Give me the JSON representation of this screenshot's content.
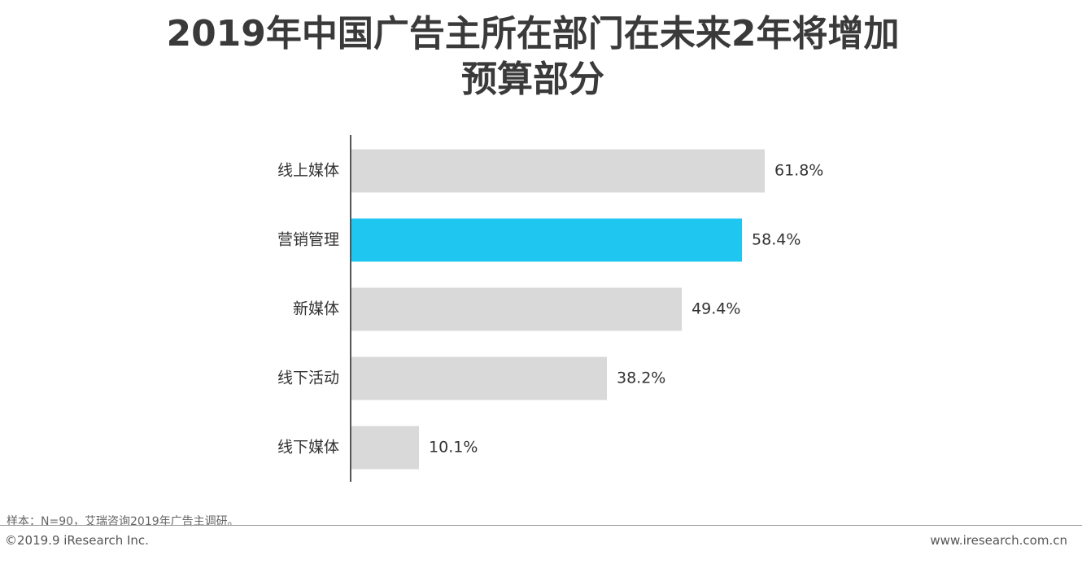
{
  "title_line1": "2019年中国广告主所在部门在未来2年将增加",
  "title_line2": "预算部分",
  "footnote": "样本：N=90，艾瑞咨询2019年广告主调研。",
  "copyright": "©2019.9 iResearch Inc.",
  "website": "www.iresearch.com.cn",
  "colors": {
    "bar": "#d9d9d9",
    "highlight": "#1fc6f0",
    "axis": "#555555",
    "text": "#333333"
  },
  "chart_data": {
    "type": "bar",
    "orientation": "horizontal",
    "categories": [
      "线上媒体",
      "营销管理",
      "新媒体",
      "线下活动",
      "线下媒体"
    ],
    "values": [
      61.8,
      58.4,
      49.4,
      38.2,
      10.1
    ],
    "value_labels": [
      "61.8%",
      "58.4%",
      "49.4%",
      "38.2%",
      "10.1%"
    ],
    "highlight_index": 1,
    "xlim": [
      0,
      100
    ],
    "grid": false,
    "legend": "none"
  }
}
